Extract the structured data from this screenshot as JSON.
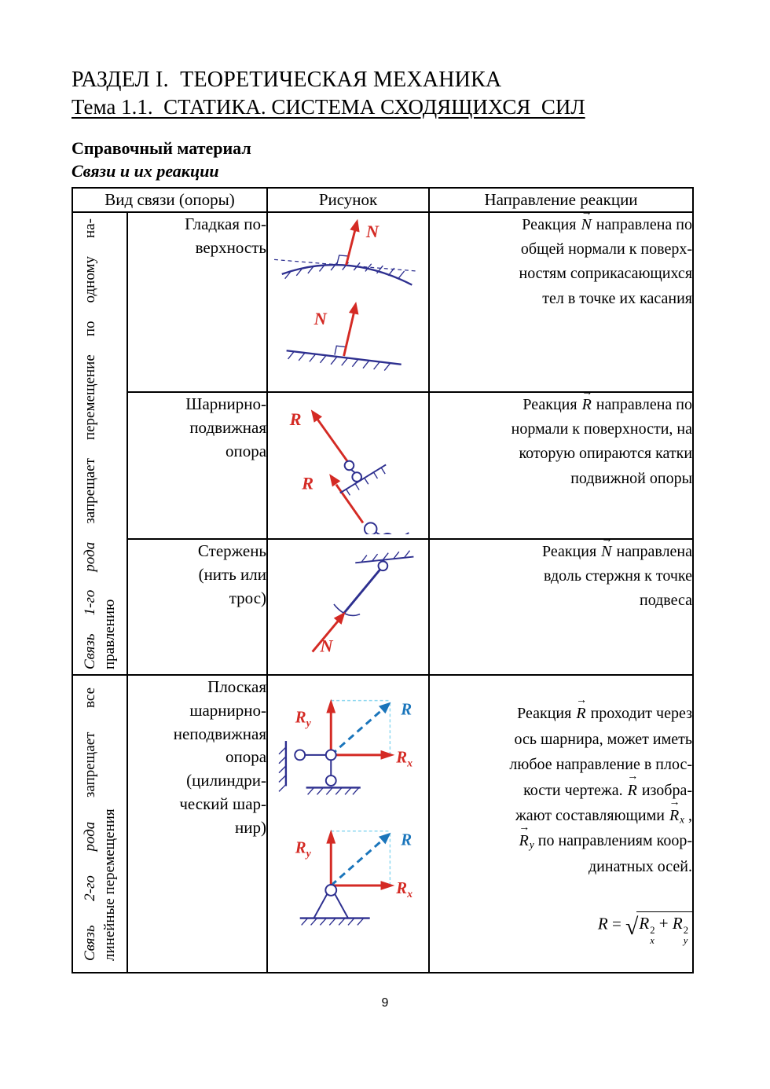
{
  "colors": {
    "red": "#d42a24",
    "navy": "#2d2f8f",
    "blue": "#1a75bb",
    "cyan": "#8fd8f0"
  },
  "page": {
    "section_title": "РАЗДЕЛ I.  ТЕОРЕТИЧЕСКАЯ МЕХАНИКА",
    "topic_title": "Тема 1.1.  СТАТИКА. СИСТЕМА СХОДЯЩИХСЯ  СИЛ",
    "subtitle_bold": "Справочный материал",
    "subtitle_bolditalic": "Связи и их реакции",
    "page_number": "9"
  },
  "table": {
    "headers": [
      "Вид связи (опоры)",
      "Рисунок",
      "Направление реакции"
    ],
    "side_labels": [
      {
        "line1": [
          {
            "t": "Связь 1-го рода",
            "it": true
          },
          {
            "t": " запрещает перемещение по одному на-"
          }
        ],
        "line2": [
          {
            "t": "правлению"
          }
        ]
      },
      {
        "line1": [
          {
            "t": "Связь 2-го рода",
            "it": true
          },
          {
            "t": " запрещает все"
          }
        ],
        "line2": [
          {
            "t": "линейные перемещения"
          }
        ]
      }
    ],
    "rows": [
      {
        "type_name": "Гладкая по-\nверхность",
        "figure": {
          "labels": [
            "N",
            "N"
          ]
        },
        "reaction": [
          {
            "t": "Реакция "
          },
          {
            "t": "N",
            "vec": true
          },
          {
            "t": " направлена по\nобщей нормали к поверх-\nностям соприкасающихся\nтел в точке их касания"
          }
        ]
      },
      {
        "type_name": "Шарнирно-\nподвижная\nопора",
        "figure": {
          "labels": [
            "R",
            "R"
          ]
        },
        "reaction": [
          {
            "t": "Реакция "
          },
          {
            "t": "R",
            "vec": true
          },
          {
            "t": " направлена по\nнормали к поверхности, на\nкоторую опираются катки\nподвижной опоры"
          }
        ]
      },
      {
        "type_name": "Стержень\n(нить или\nтрос)",
        "figure": {
          "labels": [
            "N"
          ]
        },
        "reaction": [
          {
            "t": "Реакция "
          },
          {
            "t": "N",
            "vec": true
          },
          {
            "t": " направлена\nвдоль стержня к точке\nподвеса"
          }
        ]
      },
      {
        "type_name": "Плоская\nшарнирно-\nнеподвижная\nопора\n(цилиндри-\nческий шар-\nнир)",
        "figure": {
          "r": "R",
          "rx": "R",
          "rx_sub": "x",
          "ry": "R",
          "ry_sub": "y"
        },
        "reaction": [
          {
            "t": "Реакция "
          },
          {
            "t": "R",
            "vec": true
          },
          {
            "t": " проходит через\nось шарнира, может иметь\nлюбое направление в плос-\nкости чертежа. "
          },
          {
            "t": "R",
            "vec": true
          },
          {
            "t": " изобра-\nжают составляющими "
          },
          {
            "t": "R",
            "vec": true
          },
          {
            "t": "x",
            "sb": true
          },
          {
            "t": " ,\n"
          },
          {
            "t": "R",
            "vec": true
          },
          {
            "t": "y",
            "sb": true
          },
          {
            "t": " по направлениям коор-\nдинатных осей."
          }
        ],
        "formula": {
          "lhs": "R",
          "eq": " = ",
          "radical": "√",
          "rx": "R",
          "power": "2",
          "rx_sub": "x",
          "plus": " + ",
          "ry": "R",
          "ry_sub": "y"
        }
      }
    ]
  }
}
